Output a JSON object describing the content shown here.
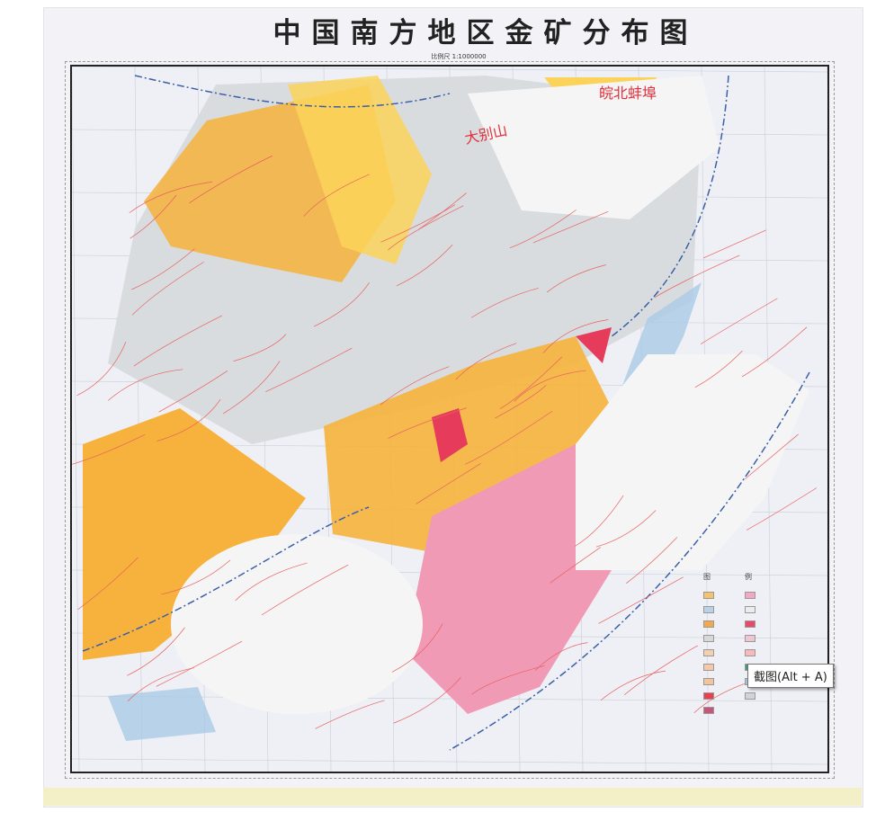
{
  "map": {
    "title": "中国南方地区金矿分布图",
    "scale": "比例尺 1:1000000",
    "region_labels": [
      "皖北蚌埠",
      "大别山"
    ],
    "legend_title": [
      "图",
      "例"
    ],
    "legend_colors": [
      "#f6c26b",
      "#b9d2e8",
      "#f3a84a",
      "#d8d8d8",
      "#f5d0b0",
      "#f5c9a6",
      "#f4c39a",
      "#ea3f4f",
      "#c8557a",
      "#f2a9c1",
      "#ececec",
      "#e84a6a",
      "#f0c6d2",
      "#f7b9b9",
      "#3f9a7e",
      "#9cc3de",
      "#d0d3dc"
    ],
    "colors": {
      "orange": "#f6b23c",
      "yellow": "#fbd35a",
      "pink": "#f19ab6",
      "red": "#e63b5a",
      "blue": "#a9cbe6",
      "grey": "#d9dcdf",
      "white": "#f5f5f5"
    }
  },
  "tooltip": {
    "text": "截图(Alt + A)"
  }
}
